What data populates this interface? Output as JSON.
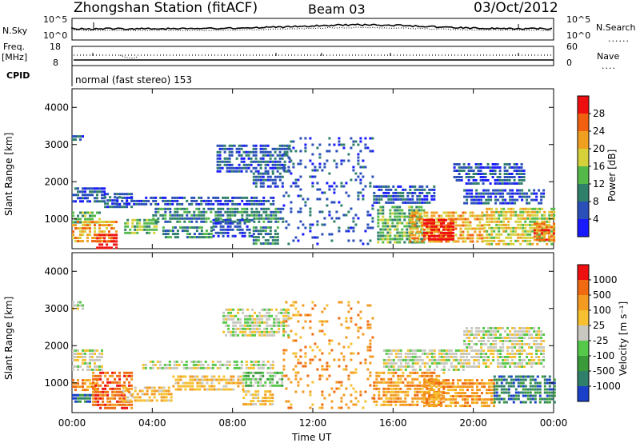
{
  "header": {
    "station": "Zhongshan Station (fitACF)",
    "beam": "Beam 03",
    "date": "03/Oct/2012"
  },
  "top_panels": {
    "nsky_label": "N.Sky",
    "nsearch_label": "N.Search",
    "noise_ticks_left": [
      "10^5",
      "10^0"
    ],
    "noise_ticks_right": [
      "10^5",
      "10^0"
    ],
    "freq_label_line1": "Freq.",
    "freq_label_line2": "[MHz]",
    "freq_ticks": [
      "18",
      "8"
    ],
    "nave_label": "Nave",
    "nave_ticks": [
      "60",
      "0"
    ],
    "cpid_label": "CPID",
    "program": "normal (fast stereo) 153"
  },
  "chart_data": [
    {
      "type": "heatmap",
      "title": "Power",
      "xlabel": "Time UT",
      "ylabel": "Slant Range [km]",
      "ylim": [
        200,
        4500
      ],
      "xlim_hours": [
        0,
        24
      ],
      "y_ticks": [
        "1000",
        "2000",
        "3000",
        "4000"
      ],
      "x_ticks": [
        "00:00",
        "04:00",
        "08:00",
        "12:00",
        "16:00",
        "20:00",
        "00:00"
      ],
      "colorbar_label": "Power [dB]",
      "colorbar_ticks": [
        "4",
        "8",
        "12",
        "16",
        "20",
        "24",
        "28"
      ],
      "colorbar_colors": [
        "#1a1aff",
        "#2a4fb8",
        "#2f7f6a",
        "#55b94a",
        "#d6d03a",
        "#f0a020",
        "#f06010",
        "#ee1010"
      ],
      "regions": [
        {
          "t0": 0.0,
          "t1": 0.55,
          "r0": 3150,
          "r1": 3250,
          "level": 1
        },
        {
          "t0": 0.0,
          "t1": 1.6,
          "r0": 1450,
          "r1": 1850,
          "level": 1
        },
        {
          "t0": 0.0,
          "t1": 1.4,
          "r0": 900,
          "r1": 1200,
          "level": 3
        },
        {
          "t0": 0.0,
          "t1": 2.2,
          "r0": 350,
          "r1": 950,
          "level": 5
        },
        {
          "t0": 1.2,
          "t1": 2.2,
          "r0": 250,
          "r1": 600,
          "level": 7
        },
        {
          "t0": 1.6,
          "t1": 3.0,
          "r0": 1300,
          "r1": 1700,
          "level": 1
        },
        {
          "t0": 2.6,
          "t1": 4.2,
          "r0": 600,
          "r1": 1000,
          "level": 3
        },
        {
          "t0": 2.2,
          "t1": 10.0,
          "r0": 1350,
          "r1": 1600,
          "level": 1
        },
        {
          "t0": 4.0,
          "t1": 10.5,
          "r0": 950,
          "r1": 1300,
          "level": 2
        },
        {
          "t0": 4.5,
          "t1": 7.0,
          "r0": 500,
          "r1": 800,
          "level": 2
        },
        {
          "t0": 7.0,
          "t1": 9.0,
          "r0": 500,
          "r1": 1000,
          "level": 1
        },
        {
          "t0": 9.0,
          "t1": 10.2,
          "r0": 350,
          "r1": 800,
          "level": 2
        },
        {
          "t0": 7.2,
          "t1": 10.8,
          "r0": 2300,
          "r1": 3000,
          "level": 1
        },
        {
          "t0": 9.0,
          "t1": 10.5,
          "r0": 1900,
          "r1": 2250,
          "level": 1
        },
        {
          "t0": 10.5,
          "t1": 15.0,
          "r0": 350,
          "r1": 3200,
          "level": 1
        },
        {
          "t0": 15.2,
          "t1": 17.5,
          "r0": 400,
          "r1": 1350,
          "level": 3
        },
        {
          "t0": 15.0,
          "t1": 18.0,
          "r0": 1450,
          "r1": 1900,
          "level": 1
        },
        {
          "t0": 16.8,
          "t1": 20.5,
          "r0": 350,
          "r1": 1200,
          "level": 5
        },
        {
          "t0": 17.5,
          "t1": 19.0,
          "r0": 450,
          "r1": 1000,
          "level": 7
        },
        {
          "t0": 19.5,
          "t1": 23.5,
          "r0": 1400,
          "r1": 1800,
          "level": 1
        },
        {
          "t0": 19.0,
          "t1": 22.5,
          "r0": 1900,
          "r1": 2500,
          "level": 1
        },
        {
          "t0": 20.5,
          "t1": 24.0,
          "r0": 350,
          "r1": 1300,
          "level": 4
        },
        {
          "t0": 23.0,
          "t1": 24.0,
          "r0": 400,
          "r1": 900,
          "level": 6
        }
      ]
    },
    {
      "type": "heatmap",
      "title": "Velocity",
      "xlabel": "Time UT",
      "ylabel": "Slant Range [km]",
      "ylim": [
        200,
        4500
      ],
      "xlim_hours": [
        0,
        24
      ],
      "y_ticks": [
        "1000",
        "2000",
        "3000",
        "4000"
      ],
      "x_ticks": [
        "00:00",
        "04:00",
        "08:00",
        "12:00",
        "16:00",
        "20:00",
        "00:00"
      ],
      "colorbar_label": "Velocity [m s⁻¹]",
      "colorbar_ticks": [
        "1000",
        "500",
        "100",
        "25",
        "-25",
        "-100",
        "-500",
        "-1000"
      ],
      "colorbar_colors": [
        "#1a3fc8",
        "#2f7f6a",
        "#3a9a3a",
        "#55c84a",
        "#c8c8c0",
        "#f6c030",
        "#f39a20",
        "#ef6a10",
        "#ee1010"
      ],
      "regions": [
        {
          "t0": 0.0,
          "t1": 0.5,
          "r0": 3000,
          "r1": 3200,
          "level": 4
        },
        {
          "t0": 0.0,
          "t1": 1.5,
          "r0": 1300,
          "r1": 1900,
          "level": 4
        },
        {
          "t0": 0.0,
          "t1": 1.2,
          "r0": 800,
          "r1": 1100,
          "level": 6
        },
        {
          "t0": 0.0,
          "t1": 1.0,
          "r0": 450,
          "r1": 700,
          "level": 1
        },
        {
          "t0": 1.0,
          "t1": 3.0,
          "r0": 350,
          "r1": 1300,
          "level": 7
        },
        {
          "t0": 2.5,
          "t1": 5.0,
          "r0": 500,
          "r1": 900,
          "level": 5
        },
        {
          "t0": 3.5,
          "t1": 10.0,
          "r0": 1350,
          "r1": 1600,
          "level": 4
        },
        {
          "t0": 5.0,
          "t1": 8.5,
          "r0": 800,
          "r1": 1200,
          "level": 5
        },
        {
          "t0": 7.5,
          "t1": 10.8,
          "r0": 2300,
          "r1": 3000,
          "level": 4
        },
        {
          "t0": 8.5,
          "t1": 10.5,
          "r0": 900,
          "r1": 1300,
          "level": 3
        },
        {
          "t0": 8.5,
          "t1": 10.0,
          "r0": 450,
          "r1": 800,
          "level": 5
        },
        {
          "t0": 10.5,
          "t1": 15.0,
          "r0": 350,
          "r1": 3200,
          "level": 6
        },
        {
          "t0": 15.0,
          "t1": 18.5,
          "r0": 400,
          "r1": 1300,
          "level": 6
        },
        {
          "t0": 15.5,
          "t1": 19.5,
          "r0": 1350,
          "r1": 1900,
          "level": 4
        },
        {
          "t0": 17.5,
          "t1": 21.0,
          "r0": 400,
          "r1": 1100,
          "level": 6
        },
        {
          "t0": 19.5,
          "t1": 23.5,
          "r0": 1400,
          "r1": 2500,
          "level": 4
        },
        {
          "t0": 21.0,
          "t1": 24.0,
          "r0": 450,
          "r1": 1200,
          "level": 1
        }
      ]
    }
  ]
}
